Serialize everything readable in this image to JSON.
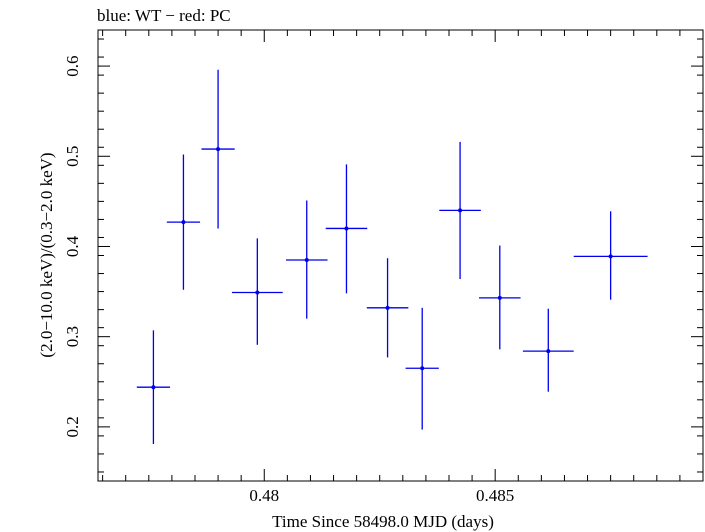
{
  "chart_data": {
    "type": "scatter",
    "title": "blue: WT − red: PC",
    "xlabel": "Time Since 58498.0 MJD (days)",
    "ylabel": "(2.0−10.0 keV)/(0.3−2.0 keV)",
    "xlim": [
      0.4764,
      0.4895
    ],
    "ylim": [
      0.14,
      0.64
    ],
    "xticks": [
      0.48,
      0.485
    ],
    "xtick_labels": [
      "0.48",
      "0.485"
    ],
    "yticks": [
      0.2,
      0.3,
      0.4,
      0.5,
      0.6
    ],
    "ytick_labels": [
      "0.2",
      "0.3",
      "0.4",
      "0.5",
      "0.6"
    ],
    "grid": false,
    "series": [
      {
        "color": "#0000ee",
        "points": [
          {
            "x": 0.4776,
            "y": 0.244,
            "xerr": 0.00036,
            "ylo": 0.181,
            "yhi": 0.307
          },
          {
            "x": 0.47825,
            "y": 0.427,
            "xerr": 0.00036,
            "ylo": 0.352,
            "yhi": 0.502
          },
          {
            "x": 0.479,
            "y": 0.508,
            "xerr": 0.00036,
            "ylo": 0.42,
            "yhi": 0.596
          },
          {
            "x": 0.47985,
            "y": 0.349,
            "xerr": 0.00055,
            "ylo": 0.291,
            "yhi": 0.409
          },
          {
            "x": 0.48092,
            "y": 0.385,
            "xerr": 0.00045,
            "ylo": 0.32,
            "yhi": 0.451
          },
          {
            "x": 0.48178,
            "y": 0.42,
            "xerr": 0.00045,
            "ylo": 0.348,
            "yhi": 0.491
          },
          {
            "x": 0.48267,
            "y": 0.332,
            "xerr": 0.00045,
            "ylo": 0.277,
            "yhi": 0.387
          },
          {
            "x": 0.48342,
            "y": 0.265,
            "xerr": 0.00036,
            "ylo": 0.197,
            "yhi": 0.332
          },
          {
            "x": 0.48424,
            "y": 0.44,
            "xerr": 0.00045,
            "ylo": 0.364,
            "yhi": 0.516
          },
          {
            "x": 0.4851,
            "y": 0.343,
            "xerr": 0.00045,
            "ylo": 0.286,
            "yhi": 0.401
          },
          {
            "x": 0.48615,
            "y": 0.284,
            "xerr": 0.00055,
            "ylo": 0.239,
            "yhi": 0.331
          },
          {
            "x": 0.4875,
            "y": 0.389,
            "xerr": 0.0008,
            "ylo": 0.341,
            "yhi": 0.439
          }
        ]
      }
    ]
  }
}
